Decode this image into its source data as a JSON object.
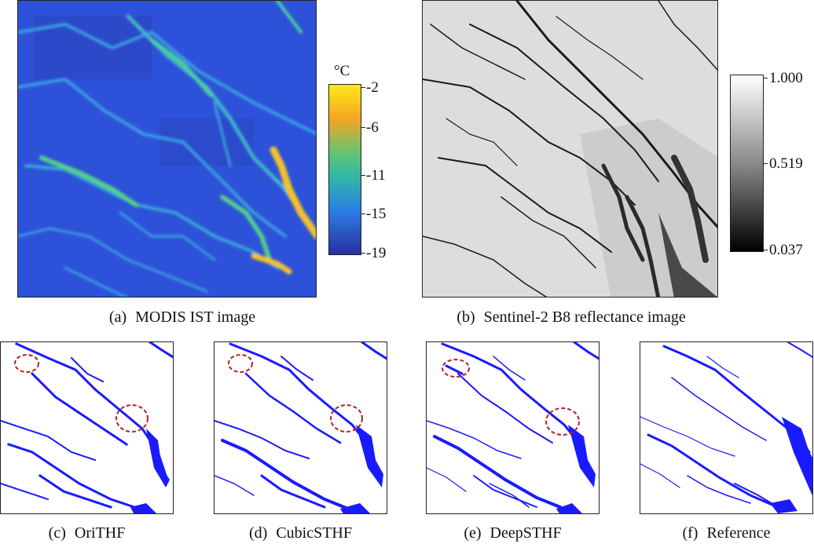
{
  "figure": {
    "panels": [
      {
        "id": "a",
        "letter": "(a)",
        "label": "MODIS IST image"
      },
      {
        "id": "b",
        "letter": "(b)",
        "label": "Sentinel-2 B8 reflectance image"
      },
      {
        "id": "c",
        "letter": "(c)",
        "label": "OriTHF"
      },
      {
        "id": "d",
        "letter": "(d)",
        "label": "CubicSTHF"
      },
      {
        "id": "e",
        "letter": "(e)",
        "label": "DeepSTHF"
      },
      {
        "id": "f",
        "letter": "(f)",
        "label": "Reference"
      }
    ],
    "colorbar_ist": {
      "unit": "°C",
      "ticks": [
        "-2",
        "-6",
        "-11",
        "-15",
        "-19"
      ],
      "colors": [
        "#ffe81a",
        "#f5a623",
        "#2fb7a8",
        "#2c7be5",
        "#2a2f9e"
      ]
    },
    "colorbar_reflectance": {
      "ticks": [
        "1.000",
        "0.519",
        "0.037"
      ],
      "colors": [
        "#ffffff",
        "#888888",
        "#000000"
      ]
    },
    "map_colors": {
      "ist_background": "#2b4fd8",
      "ist_lead_warm": "#35c2a8",
      "ist_lead_hot": "#f2c12a",
      "lead_blue": "#1a1aff",
      "highlight_circle": "#b22222"
    }
  }
}
